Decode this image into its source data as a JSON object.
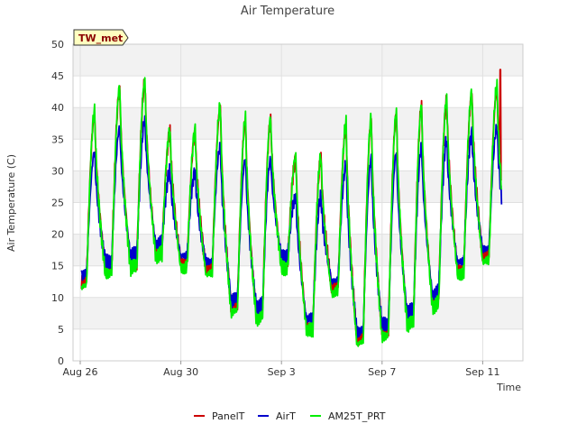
{
  "chart_data": {
    "type": "line",
    "title": "Air Temperature",
    "xlabel": "Time",
    "ylabel": "Air Temperature (C)",
    "ylim": [
      0,
      50
    ],
    "yticks": [
      0,
      5,
      10,
      15,
      20,
      25,
      30,
      35,
      40,
      45,
      50
    ],
    "xticks": [
      {
        "label": "Aug 26",
        "day": 0
      },
      {
        "label": "Aug 30",
        "day": 4
      },
      {
        "label": "Sep 3",
        "day": 8
      },
      {
        "label": "Sep 7",
        "day": 12
      },
      {
        "label": "Sep 11",
        "day": 16
      }
    ],
    "xlim_days": [
      0,
      18
    ],
    "grid": true,
    "legend_position": "bottom",
    "tag": "TW_met",
    "colors": {
      "PanelT": "#cc0000",
      "AirT": "#0000cc",
      "AM25T_PRT": "#00ee00"
    },
    "daily": [
      {
        "day": 0,
        "min": 12,
        "max": 39
      },
      {
        "day": 1,
        "min": 14,
        "max": 43
      },
      {
        "day": 2,
        "min": 15,
        "max": 44
      },
      {
        "day": 3,
        "min": 17,
        "max": 36
      },
      {
        "day": 4,
        "min": 15,
        "max": 36
      },
      {
        "day": 5,
        "min": 14,
        "max": 40
      },
      {
        "day": 6,
        "min": 8,
        "max": 38
      },
      {
        "day": 7,
        "min": 7,
        "max": 38
      },
      {
        "day": 8,
        "min": 15,
        "max": 32
      },
      {
        "day": 9,
        "min": 5,
        "max": 32
      },
      {
        "day": 10,
        "min": 11,
        "max": 37
      },
      {
        "day": 11,
        "min": 3,
        "max": 38
      },
      {
        "day": 12,
        "min": 4,
        "max": 39
      },
      {
        "day": 13,
        "min": 6,
        "max": 40
      },
      {
        "day": 14,
        "min": 9,
        "max": 41
      },
      {
        "day": 15,
        "min": 14,
        "max": 42
      },
      {
        "day": 16,
        "min": 16,
        "max": 43
      },
      {
        "day": 16.75,
        "min": 22,
        "max": 25
      }
    ],
    "series": [
      {
        "name": "PanelT",
        "color": "#cc0000",
        "offset_max": 0,
        "offset_min": 0.5,
        "spike": {
          "day": 16.7,
          "value": 46
        }
      },
      {
        "name": "AirT",
        "color": "#0000cc",
        "offset_max": -6,
        "offset_min": 1.5
      },
      {
        "name": "AM25T_PRT",
        "color": "#00ee00",
        "offset_max": 0.5,
        "offset_min": -0.5
      }
    ]
  }
}
